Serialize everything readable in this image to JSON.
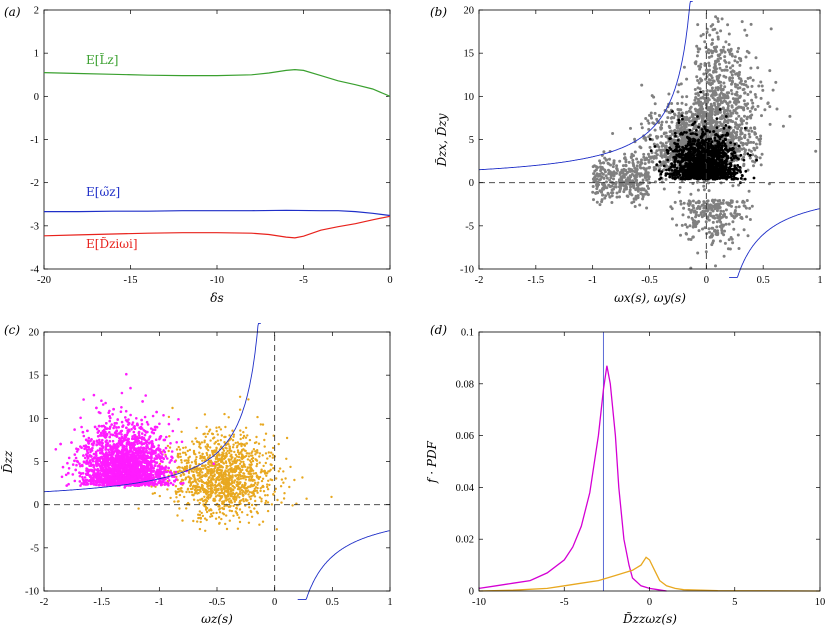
{
  "chart_data": [
    {
      "panel_label": "(a)",
      "type": "line",
      "xlabel": "δs",
      "ylabel": "",
      "xlim": [
        -20,
        0
      ],
      "ylim": [
        -4,
        2
      ],
      "xticks": [
        "-20",
        "-15",
        "-10",
        "-5",
        "0"
      ],
      "yticks": [
        "-4",
        "-3",
        "-2",
        "-1",
        "0",
        "1",
        "2"
      ],
      "series": [
        {
          "name": "E[L̃z]",
          "color": "#3aa02f",
          "x": [
            -20,
            -18,
            -16,
            -14,
            -12,
            -10,
            -8,
            -7,
            -6,
            -5.5,
            -5,
            -4,
            -3,
            -2,
            -1,
            0
          ],
          "y": [
            0.55,
            0.53,
            0.51,
            0.49,
            0.48,
            0.48,
            0.5,
            0.54,
            0.6,
            0.62,
            0.6,
            0.48,
            0.36,
            0.27,
            0.17,
            0.0
          ]
        },
        {
          "name": "E[ω̃z]",
          "color": "#1f2fc8",
          "x": [
            -20,
            -18,
            -16,
            -14,
            -12,
            -10,
            -8,
            -6,
            -4,
            -3,
            -2,
            -1,
            0
          ],
          "y": [
            -2.67,
            -2.67,
            -2.66,
            -2.66,
            -2.65,
            -2.65,
            -2.65,
            -2.64,
            -2.65,
            -2.65,
            -2.67,
            -2.71,
            -2.76
          ]
        },
        {
          "name": "E[D̃ziωi]",
          "color": "#e8221c",
          "x": [
            -20,
            -18,
            -16,
            -14,
            -12,
            -10,
            -8,
            -7,
            -6,
            -5.5,
            -5,
            -4,
            -3,
            -2,
            -1,
            0
          ],
          "y": [
            -3.23,
            -3.21,
            -3.19,
            -3.17,
            -3.16,
            -3.16,
            -3.17,
            -3.2,
            -3.26,
            -3.28,
            -3.24,
            -3.1,
            -3.02,
            -2.95,
            -2.86,
            -2.78
          ]
        }
      ],
      "annotations": [
        {
          "text": "E[L̃z]",
          "x": -18,
          "y": 0.85
        },
        {
          "text": "E[ω̃z]",
          "x": -18,
          "y": -2.35
        },
        {
          "text": "E[D̃ziωi]",
          "x": -18,
          "y": -3.5
        }
      ]
    },
    {
      "panel_label": "(b)",
      "type": "scatter",
      "xlabel": "ωx(s), ωy(s)",
      "ylabel": "D̃zx, D̃zy",
      "xlim": [
        -2,
        1
      ],
      "ylim": [
        -10,
        20
      ],
      "xticks": [
        "-2",
        "-1.5",
        "-1",
        "-0.5",
        "0",
        "0.5",
        "1"
      ],
      "yticks": [
        "-10",
        "-5",
        "0",
        "5",
        "10",
        "15",
        "20"
      ],
      "series": [
        {
          "name": "",
          "color": "#808080",
          "x": [
            -0.9,
            -0.6,
            -0.4,
            -0.2,
            0.0,
            0.1,
            0.2,
            0.3,
            0.1,
            -0.3,
            0.0,
            0.2,
            0.25,
            -0.5,
            0.05
          ],
          "y": [
            0.5,
            -1.5,
            2.0,
            7.0,
            13.0,
            19.0,
            16.0,
            10.0,
            -6.0,
            -3.0,
            -8.0,
            4.0,
            2.0,
            0.0,
            3.0
          ]
        },
        {
          "name": "",
          "color": "#000000",
          "x": [
            -0.4,
            -0.3,
            -0.2,
            -0.1,
            0.0,
            0.1,
            0.2,
            0.3,
            -0.05
          ],
          "y": [
            1.0,
            2.0,
            4.0,
            7.0,
            5.0,
            2.0,
            1.0,
            0.0,
            10.5
          ]
        }
      ],
      "curves": [
        {
          "name": "",
          "color": "#1f2fc8",
          "form": "y = -3/x"
        }
      ],
      "reference_lines": {
        "x0": true,
        "y0": true
      }
    },
    {
      "panel_label": "(c)",
      "type": "scatter",
      "xlabel": "ωz(s)",
      "ylabel": "D̃zz",
      "xlim": [
        -2,
        1
      ],
      "ylim": [
        -10,
        20
      ],
      "xticks": [
        "-2",
        "-1.5",
        "-1",
        "-0.5",
        "0",
        "0.5",
        "1"
      ],
      "yticks": [
        "-10",
        "-5",
        "0",
        "5",
        "10",
        "15",
        "20"
      ],
      "series": [
        {
          "name": "",
          "color": "#ff1cff",
          "x": [
            -1.75,
            -1.6,
            -1.5,
            -1.4,
            -1.3,
            -1.25,
            -1.2,
            -1.1,
            -1.0,
            -0.9,
            -1.3
          ],
          "y": [
            3.5,
            4.0,
            3.0,
            5.0,
            8.0,
            13.5,
            10.0,
            6.0,
            4.0,
            2.5,
            2.0
          ]
        },
        {
          "name": "",
          "color": "#e8a820",
          "x": [
            -0.8,
            -0.6,
            -0.5,
            -0.4,
            -0.3,
            -0.2,
            -0.1,
            0.0,
            -0.45,
            -0.3
          ],
          "y": [
            1.5,
            2.5,
            4.0,
            7.0,
            11.0,
            6.0,
            3.0,
            1.5,
            -1.0,
            12.5
          ]
        }
      ],
      "curves": [
        {
          "name": "",
          "color": "#1f2fc8",
          "form": "y = -3/x"
        }
      ],
      "reference_lines": {
        "x0": true,
        "y0": true
      }
    },
    {
      "panel_label": "(d)",
      "type": "line",
      "xlabel": "D̃zzωz(s)",
      "ylabel": "f · PDF",
      "xlim": [
        -10,
        10
      ],
      "ylim": [
        0,
        0.1
      ],
      "xticks": [
        "-10",
        "-5",
        "0",
        "5",
        "10"
      ],
      "yticks": [
        "0",
        "0.02",
        "0.04",
        "0.06",
        "0.08",
        "0.1"
      ],
      "vline": -2.7,
      "series": [
        {
          "name": "",
          "color": "#d400d4",
          "x": [
            -10,
            -9,
            -8,
            -7,
            -6,
            -5,
            -4.5,
            -4,
            -3.5,
            -3,
            -2.7,
            -2.5,
            -2.3,
            -2.0,
            -1.8,
            -1.5,
            -1.2,
            -1.0,
            -0.5,
            0,
            0.5,
            1
          ],
          "y": [
            0.001,
            0.002,
            0.003,
            0.004,
            0.007,
            0.012,
            0.017,
            0.025,
            0.038,
            0.06,
            0.078,
            0.087,
            0.08,
            0.06,
            0.04,
            0.02,
            0.01,
            0.005,
            0.002,
            0.001,
            0.0005,
            0
          ]
        },
        {
          "name": "",
          "color": "#e8a820",
          "x": [
            -10,
            -8,
            -6,
            -5,
            -4,
            -3,
            -2,
            -1.5,
            -1,
            -0.5,
            -0.2,
            0,
            0.3,
            0.6,
            1,
            1.5,
            2,
            4,
            10
          ],
          "y": [
            0,
            0.0003,
            0.001,
            0.002,
            0.003,
            0.004,
            0.006,
            0.007,
            0.008,
            0.01,
            0.013,
            0.012,
            0.008,
            0.004,
            0.002,
            0.001,
            0.0005,
            0.0001,
            0
          ]
        }
      ]
    }
  ]
}
